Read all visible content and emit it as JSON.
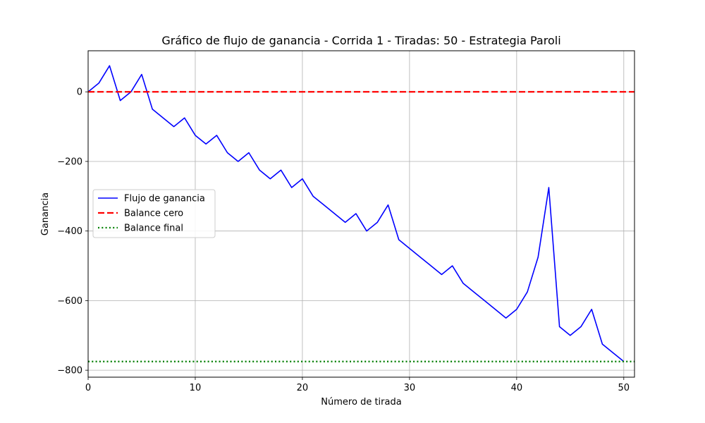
{
  "chart_data": {
    "type": "line",
    "title": "Gráfico de flujo de ganancia - Corrida 1 - Tiradas: 50 - Estrategia Paroli",
    "xlabel": "Número de tirada",
    "ylabel": "Ganancia",
    "xlim": [
      0,
      51
    ],
    "ylim": [
      -820,
      118
    ],
    "xticks": [
      0,
      10,
      20,
      30,
      40,
      50
    ],
    "yticks": [
      -800,
      -600,
      -400,
      -200,
      0
    ],
    "ytick_labels": [
      "−800",
      "−600",
      "−400",
      "−200",
      "0"
    ],
    "xtick_labels": [
      "0",
      "10",
      "20",
      "30",
      "40",
      "50"
    ],
    "grid": true,
    "legend_position": "center-left",
    "series": [
      {
        "name": "Flujo de ganancia",
        "color": "#0000ff",
        "style": "solid",
        "x": [
          0,
          1,
          2,
          3,
          4,
          5,
          6,
          7,
          8,
          9,
          10,
          11,
          12,
          13,
          14,
          15,
          16,
          17,
          18,
          19,
          20,
          21,
          22,
          23,
          24,
          25,
          26,
          27,
          28,
          29,
          30,
          31,
          32,
          33,
          34,
          35,
          36,
          37,
          38,
          39,
          40,
          41,
          42,
          43,
          44,
          45,
          46,
          47,
          48,
          49,
          50
        ],
        "values": [
          0,
          25,
          75,
          -25,
          0,
          50,
          -50,
          -75,
          -100,
          -75,
          -125,
          -150,
          -125,
          -175,
          -200,
          -175,
          -225,
          -250,
          -225,
          -275,
          -250,
          -300,
          -325,
          -350,
          -375,
          -350,
          -400,
          -375,
          -325,
          -425,
          -450,
          -475,
          -500,
          -525,
          -500,
          -550,
          -575,
          -600,
          -625,
          -650,
          -625,
          -575,
          -475,
          -275,
          -675,
          -700,
          -675,
          -625,
          -725,
          -750,
          -775
        ]
      },
      {
        "name": "Balance cero",
        "color": "#ff0000",
        "style": "dashed",
        "y": 0
      },
      {
        "name": "Balance final",
        "color": "#008000",
        "style": "dotted",
        "y": -775
      }
    ]
  }
}
